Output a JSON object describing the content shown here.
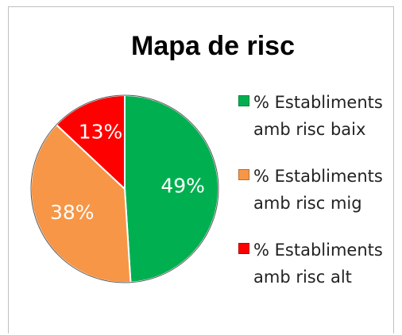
{
  "chart_data": {
    "type": "pie",
    "title": "Mapa de risc",
    "categories": [
      "% Establiments amb risc baix",
      "% Establiments amb risc mig",
      "% Establiments amb risc alt"
    ],
    "values": [
      49,
      38,
      13
    ],
    "value_labels": [
      "49%",
      "38%",
      "13%"
    ],
    "colors": [
      "#00b050",
      "#f79646",
      "#ff0000"
    ],
    "legend": "right"
  }
}
